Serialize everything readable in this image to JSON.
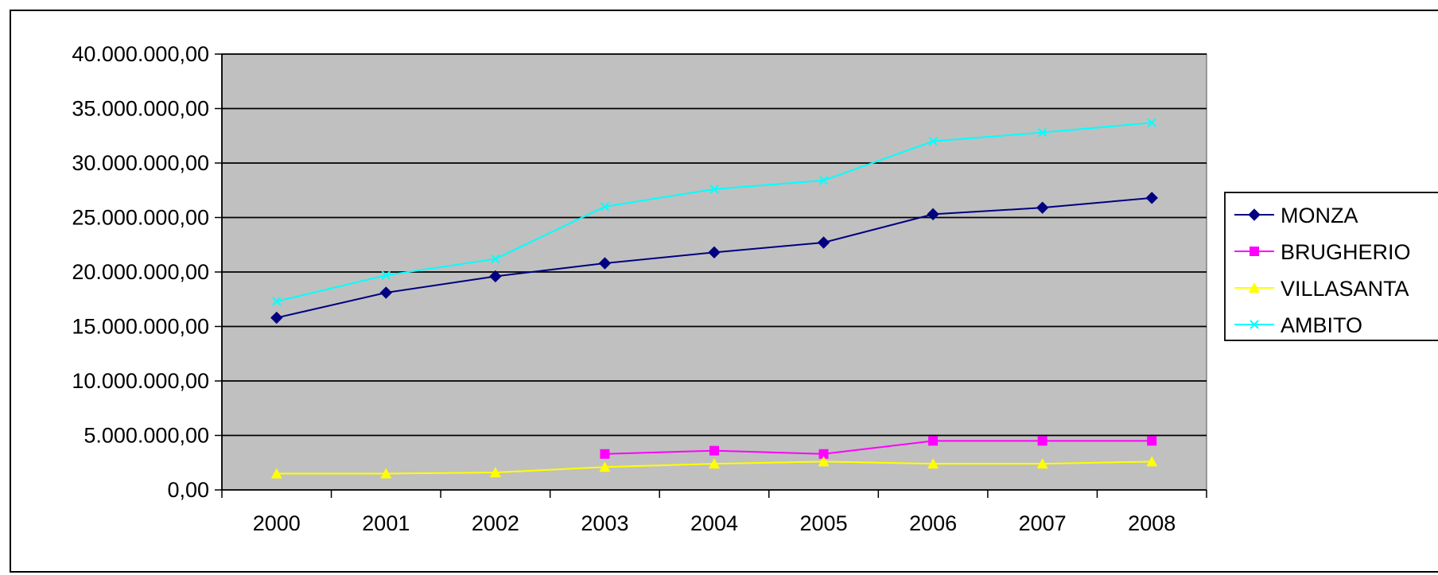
{
  "chart_data": {
    "type": "line",
    "title": "",
    "xlabel": "",
    "ylabel": "",
    "categories": [
      "2000",
      "2001",
      "2002",
      "2003",
      "2004",
      "2005",
      "2006",
      "2007",
      "2008"
    ],
    "ylim": [
      0,
      40000000
    ],
    "yticks": [
      0,
      5000000,
      10000000,
      15000000,
      20000000,
      25000000,
      30000000,
      35000000,
      40000000
    ],
    "ytick_labels": [
      "0,00",
      "5.000.000,00",
      "10.000.000,00",
      "15.000.000,00",
      "20.000.000,00",
      "25.000.000,00",
      "30.000.000,00",
      "35.000.000,00",
      "40.000.000,00"
    ],
    "grid": true,
    "plot_background": "#c0c0c0",
    "legend_position": "right",
    "series": [
      {
        "name": "MONZA",
        "color": "#000080",
        "marker": "diamond",
        "values": [
          15800000,
          18100000,
          19600000,
          20800000,
          21800000,
          22700000,
          25300000,
          25900000,
          26800000
        ]
      },
      {
        "name": "BRUGHERIO",
        "color": "#ff00ff",
        "marker": "square",
        "values": [
          null,
          null,
          null,
          3300000,
          3600000,
          3300000,
          4500000,
          4500000,
          4500000
        ]
      },
      {
        "name": "VILLASANTA",
        "color": "#ffff00",
        "marker": "triangle",
        "values": [
          1500000,
          1500000,
          1600000,
          2100000,
          2400000,
          2600000,
          2400000,
          2400000,
          2600000
        ]
      },
      {
        "name": "AMBITO",
        "color": "#00ffff",
        "marker": "x",
        "values": [
          17300000,
          19700000,
          21200000,
          26000000,
          27600000,
          28400000,
          32000000,
          32800000,
          33700000
        ]
      }
    ]
  }
}
